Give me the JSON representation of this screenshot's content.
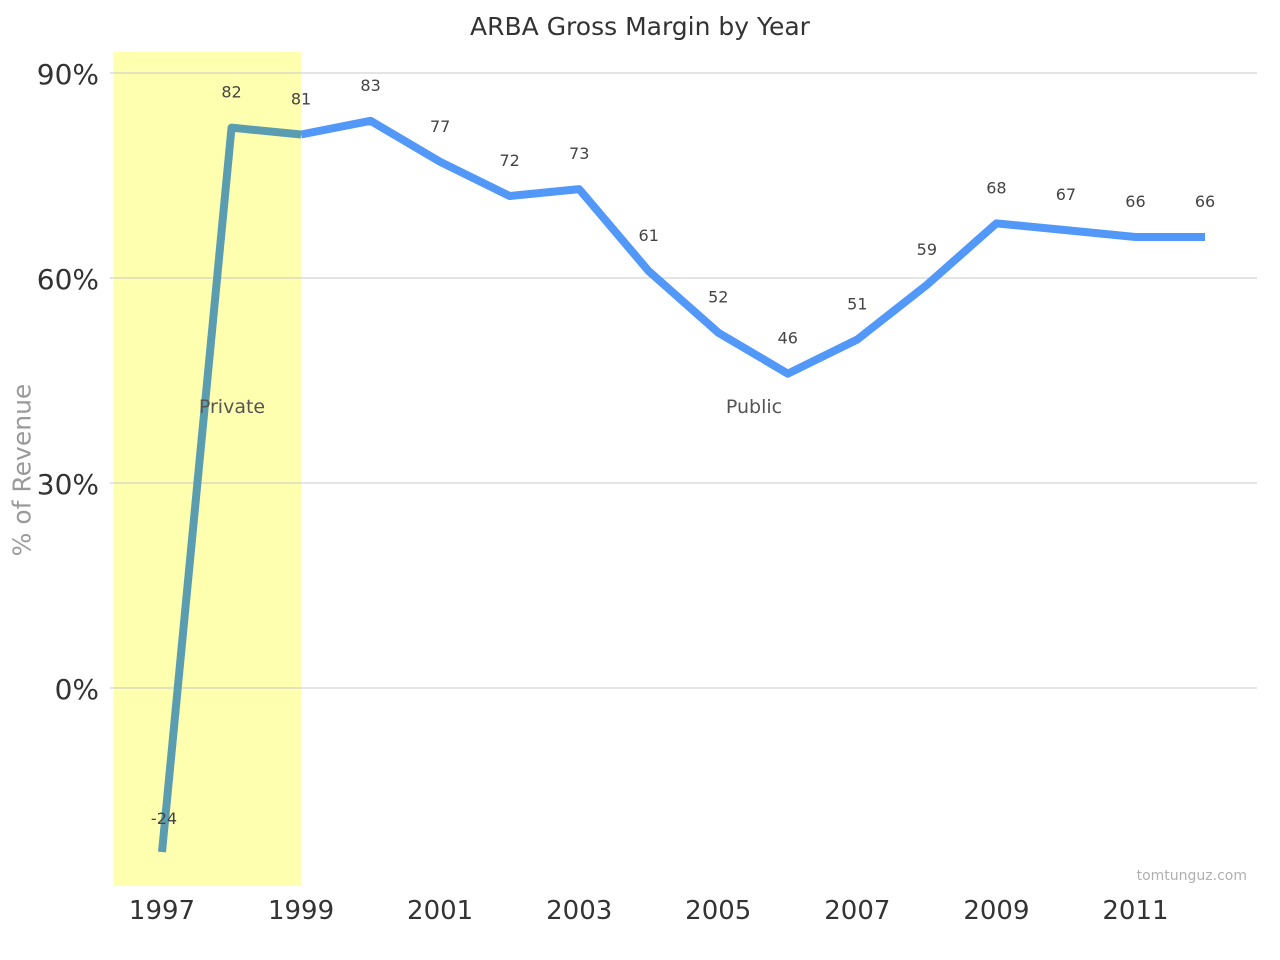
{
  "chart_data": {
    "type": "line",
    "title": "ARBA Gross Margin by Year",
    "ylabel": "% of Revenue",
    "xlabel": "",
    "x": [
      1997,
      1998,
      1999,
      2000,
      2001,
      2002,
      2003,
      2004,
      2005,
      2006,
      2007,
      2008,
      2009,
      2010,
      2011,
      2012
    ],
    "values": [
      -24,
      82,
      81,
      83,
      77,
      72,
      73,
      61,
      52,
      46,
      51,
      59,
      68,
      67,
      66,
      66
    ],
    "data_labels": [
      "-24",
      "82",
      "81",
      "83",
      "77",
      "72",
      "73",
      "61",
      "52",
      "46",
      "51",
      "59",
      "68",
      "67",
      "66",
      "66"
    ],
    "ylim": [
      -30,
      90
    ],
    "yticks": [
      0,
      30,
      60,
      90
    ],
    "ytick_labels": [
      "0%",
      "30%",
      "60%",
      "90%"
    ],
    "xticks": [
      1997,
      1999,
      2001,
      2003,
      2005,
      2007,
      2009,
      2011
    ],
    "xtick_labels": [
      "1997",
      "1999",
      "2001",
      "2003",
      "2005",
      "2007",
      "2009",
      "2011"
    ],
    "grid": true,
    "regions": [
      {
        "label": "Private",
        "from": 1996.3,
        "to": 1999,
        "color": "#ffffb0"
      },
      {
        "label": "Public",
        "from": 1999,
        "to": 2012.7,
        "color": "#ffffff"
      }
    ],
    "line_color": "#5198f8",
    "private_line_color": "#5b9db0"
  },
  "credit": "tomtunguz.com"
}
